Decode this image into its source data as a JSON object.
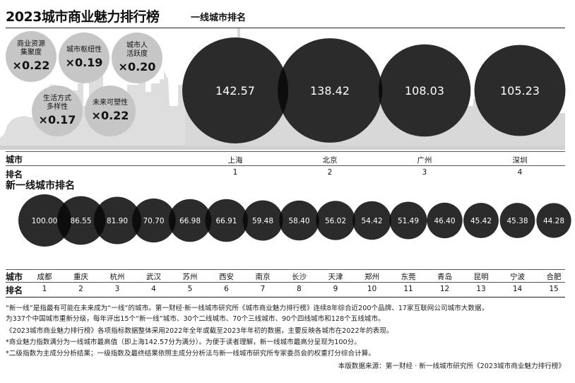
{
  "header": {
    "title": "2023城市商业魅力排行榜",
    "subtitle": "一线城市排名"
  },
  "weights": [
    {
      "label": "商业资源集聚度",
      "line1": "商业资源",
      "line2": "集聚度",
      "weight": "×0.22"
    },
    {
      "label": "城市枢纽性",
      "line1": "城市枢纽性",
      "line2": "",
      "weight": "×0.19"
    },
    {
      "label": "城市人活跃度",
      "line1": "城市人",
      "line2": "活跃度",
      "weight": "×0.20"
    },
    {
      "label": "生活方式多样性",
      "line1": "生活方式",
      "line2": "多样性",
      "weight": "×0.17"
    },
    {
      "label": "未来可塑性",
      "line1": "未来可塑性",
      "line2": "",
      "weight": "×0.22"
    }
  ],
  "row_labels": {
    "city": "城市",
    "rank": "排名"
  },
  "new_tier_title": "新一线城市排名",
  "chart_data": [
    {
      "type": "bubble",
      "title": "一线城市排名",
      "categories": [
        "上海",
        "北京",
        "广州",
        "深圳"
      ],
      "ranks": [
        "1",
        "2",
        "3",
        "4"
      ],
      "values": [
        142.57,
        138.42,
        108.03,
        105.23
      ],
      "value_labels": [
        "142.57",
        "138.42",
        "108.03",
        "105.23"
      ]
    },
    {
      "type": "bubble",
      "title": "新一线城市排名",
      "categories": [
        "成都",
        "重庆",
        "杭州",
        "武汉",
        "苏州",
        "西安",
        "南京",
        "长沙",
        "天津",
        "郑州",
        "东莞",
        "青岛",
        "昆明",
        "宁波",
        "合肥"
      ],
      "ranks": [
        "1",
        "2",
        "3",
        "4",
        "5",
        "6",
        "7",
        "8",
        "9",
        "10",
        "11",
        "12",
        "13",
        "14",
        "15"
      ],
      "values": [
        100.0,
        86.55,
        81.9,
        70.7,
        66.98,
        66.91,
        59.48,
        58.4,
        56.02,
        54.42,
        51.49,
        46.4,
        45.42,
        45.38,
        44.28
      ],
      "value_labels": [
        "100.00",
        "86.55",
        "81.90",
        "70.70",
        "66.98",
        "66.91",
        "59.48",
        "58.40",
        "56.02",
        "54.42",
        "51.49",
        "46.40",
        "45.42",
        "45.38",
        "44.28"
      ]
    }
  ],
  "notes": [
    "“新一线”是指最有可能在未来成为“一线”的城市。第一财经·新一线城市研究所《城市商业魅力排行榜》连续8年综合近200个品牌、17家互联网公司城市大数据，",
    "为337个中国城市重新分级，每年评出15个“新一线”城市、30个二线城市、70个三线城市、90个四线城市和128个五线城市。",
    "《2023城市商业魅力排行榜》各项指标数据整体采用2022年全年或截至2023年年初的数据，主要反映各城市在2022年的表现。",
    "*商业魅力指数满分为一线城市最高值（即上海142.57分为满分）。为便于读者理解，新一线城市最高分呈现为100分。",
    "*二级指数为主成分分析结果；一级指数及最终结果依照主成分分析法与新一线城市研究所专家委员会的权重打分综合计算。"
  ],
  "source": "本版数据来源：第一财经 · 新一线城市研究所《2023城市商业魅力排行榜》",
  "colors": {
    "bubble": "#2b2b2b",
    "bubble_overlap": "#0d0d0d",
    "weight_circle": "#c6c6c6",
    "skyline": "#dcdcdc"
  }
}
